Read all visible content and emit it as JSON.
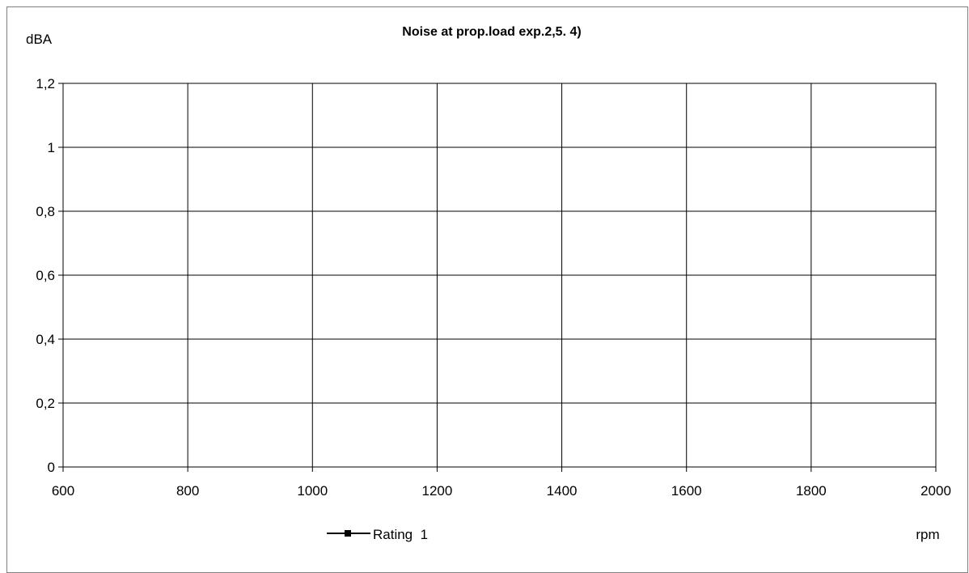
{
  "chart_data": {
    "type": "line",
    "title": "Noise at prop.load exp.2,5. 4)",
    "ylabel": "dBA",
    "xlabel": "rpm",
    "xlim": [
      600,
      2000
    ],
    "ylim": [
      0,
      1.2
    ],
    "x_ticks": [
      600,
      800,
      1000,
      1200,
      1400,
      1600,
      1800,
      2000
    ],
    "x_tick_labels": [
      "600",
      "800",
      "1000",
      "1200",
      "1400",
      "1600",
      "1800",
      "2000"
    ],
    "y_ticks": [
      0,
      0.2,
      0.4,
      0.6,
      0.8,
      1,
      1.2
    ],
    "y_tick_labels": [
      "0",
      "0,2",
      "0,4",
      "0,6",
      "0,8",
      "1",
      "1,2"
    ],
    "grid": true,
    "legend_position": "bottom",
    "series": [
      {
        "name": "Rating  1",
        "x": [],
        "y": [],
        "color": "#000000",
        "marker": "square"
      }
    ]
  }
}
